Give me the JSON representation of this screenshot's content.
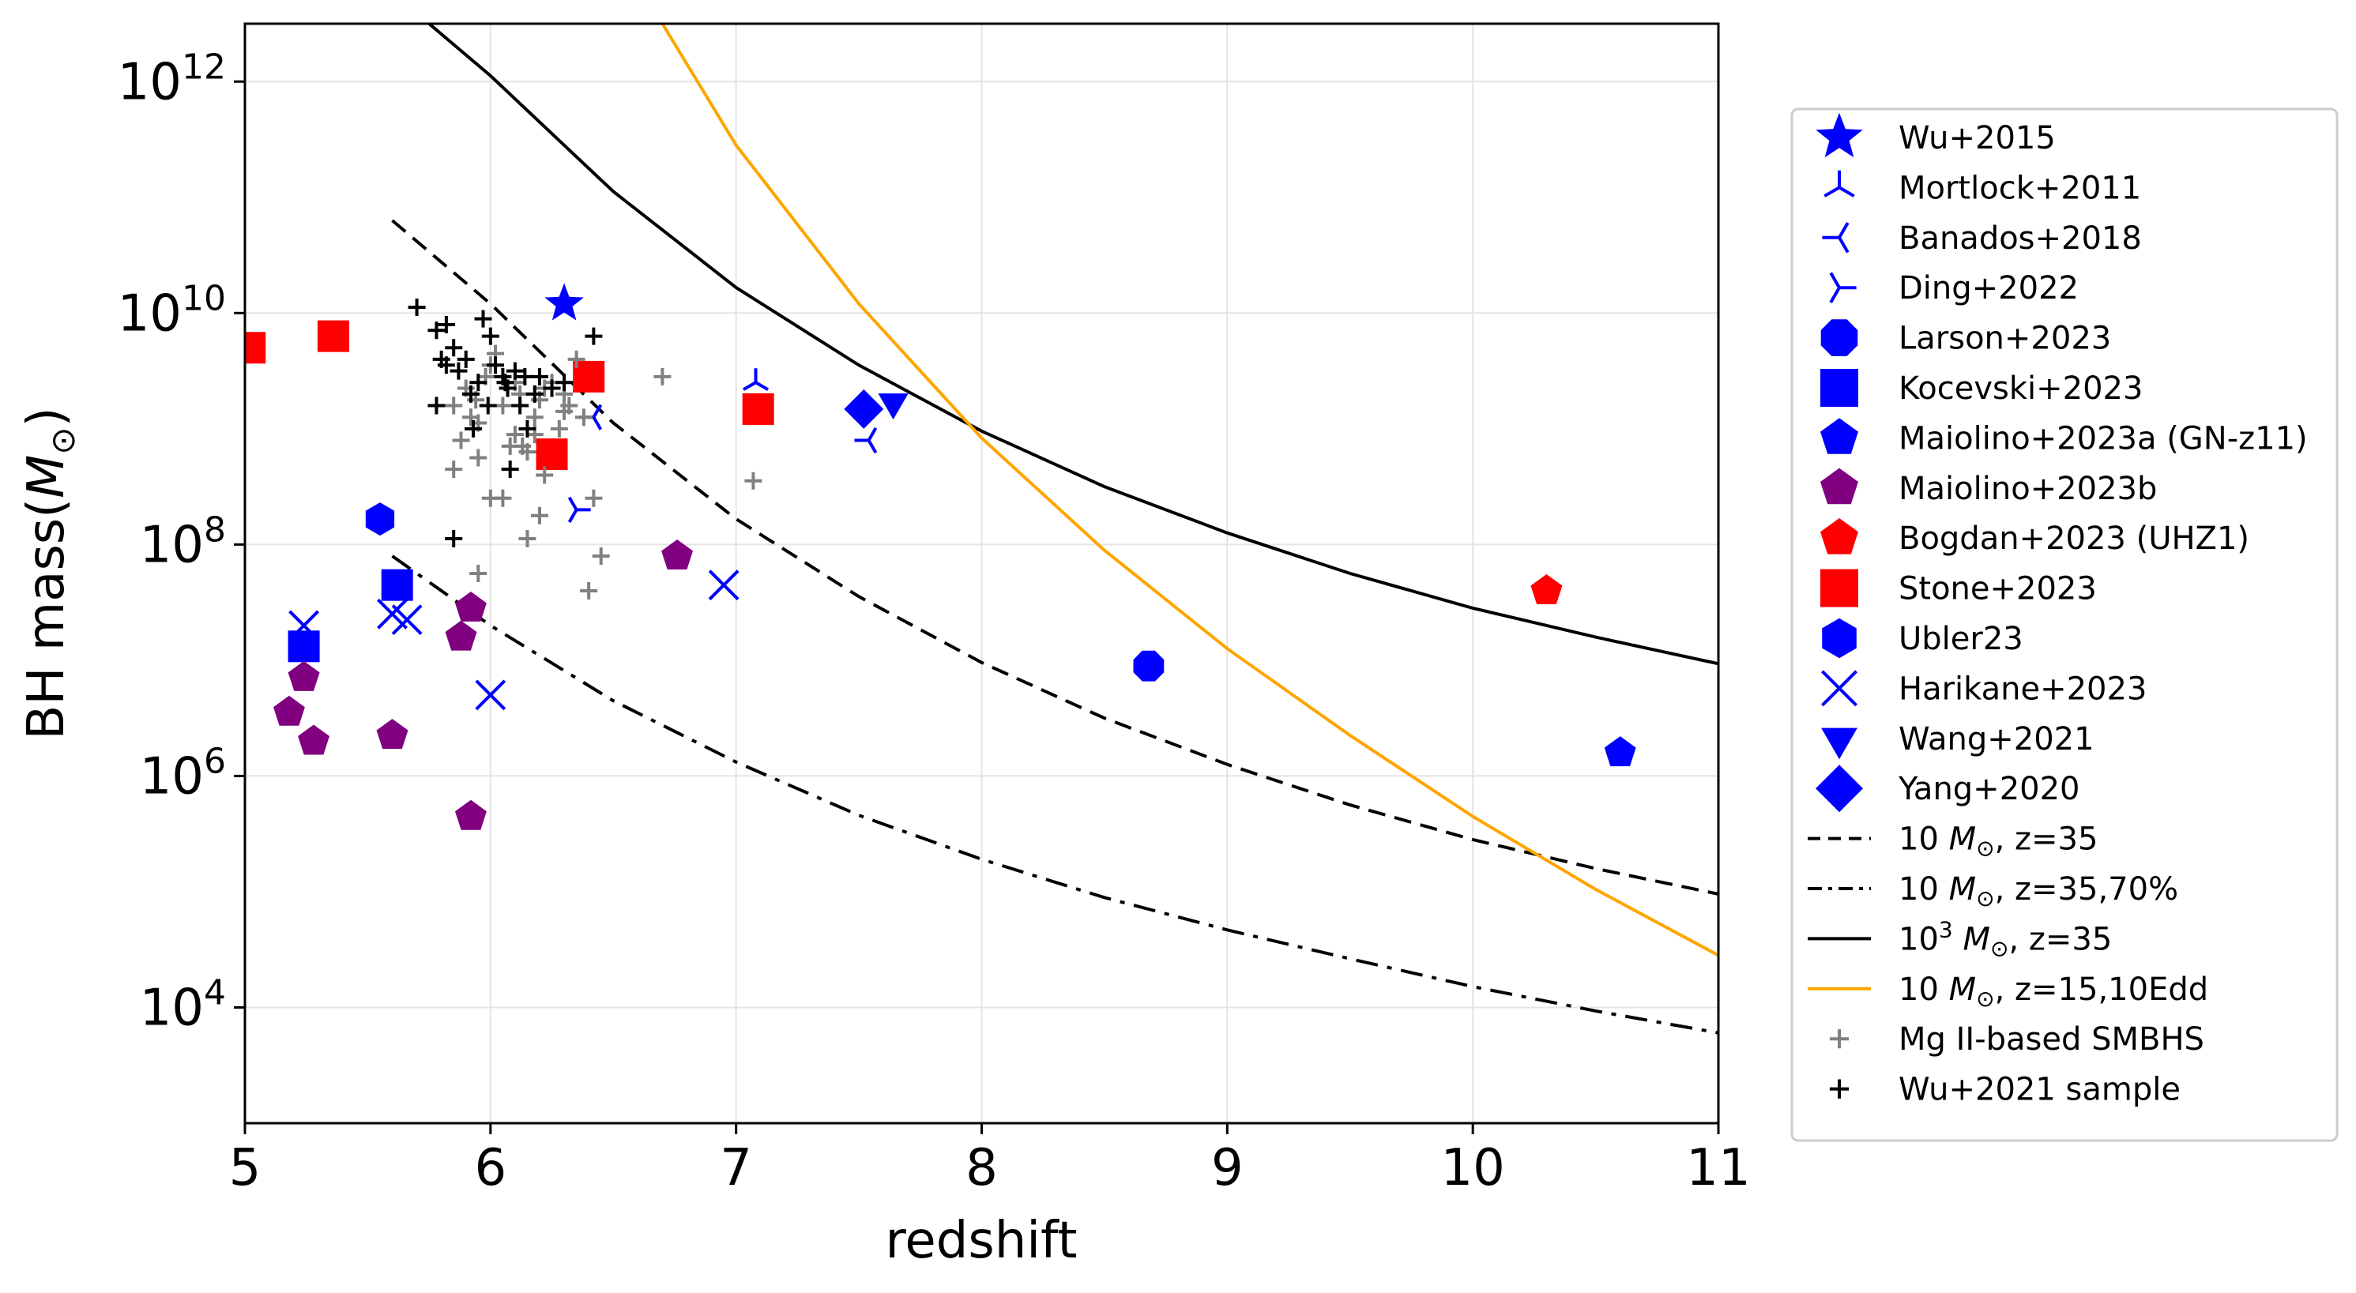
{
  "chart_data": {
    "type": "scatter",
    "xlabel": "redshift",
    "ylabel_text": "BH mass(",
    "ylabel_sym": "M",
    "ylabel_sub": "⊙",
    "ylabel_close": ")",
    "xlim": [
      5,
      11
    ],
    "ylim_log10": [
      3,
      12.5
    ],
    "yscale": "log",
    "grid": true,
    "legend_position": "right",
    "x_ticks": [
      "5",
      "6",
      "7",
      "8",
      "9",
      "10",
      "11"
    ],
    "y_ticks": [
      {
        "base": "10",
        "exp": "4",
        "value": 4
      },
      {
        "base": "10",
        "exp": "6",
        "value": 6
      },
      {
        "base": "10",
        "exp": "8",
        "value": 8
      },
      {
        "base": "10",
        "exp": "10",
        "value": 10
      },
      {
        "base": "10",
        "exp": "12",
        "value": 12
      }
    ],
    "point_series": [
      {
        "name": "Wu+2015",
        "marker": "star",
        "color": "#0000ff",
        "points": [
          [
            6.3,
            10.08
          ]
        ]
      },
      {
        "name": "Mortlock+2011",
        "marker": "tri_up",
        "color": "#0000ff",
        "points": [
          [
            7.08,
            9.4
          ]
        ]
      },
      {
        "name": "Banados+2018",
        "marker": "tri_left",
        "color": "#0000ff",
        "points": [
          [
            7.54,
            8.9
          ],
          [
            6.42,
            9.1
          ]
        ]
      },
      {
        "name": "Ding+2022",
        "marker": "tri_right",
        "color": "#0000ff",
        "points": [
          [
            6.35,
            8.3
          ]
        ]
      },
      {
        "name": "Larson+2023",
        "marker": "octagon",
        "color": "#0000ff",
        "points": [
          [
            8.68,
            6.95
          ]
        ]
      },
      {
        "name": "Kocevski+2023",
        "marker": "square",
        "color": "#0000ff",
        "points": [
          [
            5.24,
            7.12
          ],
          [
            5.62,
            7.65
          ]
        ]
      },
      {
        "name": "Maiolino+2023a (GN-z11)",
        "marker": "pentagon",
        "color": "#0000ff",
        "points": [
          [
            10.6,
            6.2
          ]
        ]
      },
      {
        "name": "Maiolino+2023b",
        "marker": "pentagon",
        "color": "#800080",
        "points": [
          [
            5.18,
            6.55
          ],
          [
            5.24,
            6.85
          ],
          [
            5.28,
            6.3
          ],
          [
            5.6,
            6.35
          ],
          [
            5.88,
            7.2
          ],
          [
            5.92,
            7.45
          ],
          [
            5.92,
            5.65
          ],
          [
            6.76,
            7.9
          ]
        ]
      },
      {
        "name": "Bogdan+2023 (UHZ1)",
        "marker": "pentagon",
        "color": "#ff0000",
        "points": [
          [
            10.3,
            7.6
          ]
        ]
      },
      {
        "name": "Stone+2023",
        "marker": "square",
        "color": "#ff0000",
        "points": [
          [
            5.02,
            9.7
          ],
          [
            5.36,
            9.8
          ],
          [
            6.25,
            8.78
          ],
          [
            6.4,
            9.45
          ],
          [
            7.09,
            9.17
          ]
        ]
      },
      {
        "name": "Ubler23",
        "marker": "hexagon",
        "color": "#0000ff",
        "points": [
          [
            5.55,
            8.22
          ]
        ]
      },
      {
        "name": "Harikane+2023",
        "marker": "x",
        "color": "#0000ff",
        "points": [
          [
            5.24,
            7.3
          ],
          [
            5.6,
            7.4
          ],
          [
            5.66,
            7.35
          ],
          [
            6.0,
            6.7
          ],
          [
            6.95,
            7.65
          ]
        ]
      },
      {
        "name": "Wang+2021",
        "marker": "triangle_down",
        "color": "#0000ff",
        "points": [
          [
            7.64,
            9.23
          ]
        ]
      },
      {
        "name": "Yang+2020",
        "marker": "diamond",
        "color": "#0000ff",
        "points": [
          [
            7.52,
            9.17
          ]
        ]
      },
      {
        "name": "Mg II-based SMBHS",
        "marker": "plus",
        "color": "#808080",
        "points": [
          [
            5.85,
            8.65
          ],
          [
            5.95,
            8.75
          ],
          [
            6.0,
            8.4
          ],
          [
            6.05,
            8.4
          ],
          [
            6.15,
            8.05
          ],
          [
            6.2,
            8.25
          ],
          [
            6.3,
            9.3
          ],
          [
            6.35,
            9.6
          ],
          [
            6.42,
            8.4
          ],
          [
            6.45,
            7.9
          ],
          [
            6.4,
            7.6
          ],
          [
            6.7,
            9.45
          ],
          [
            7.07,
            8.55
          ],
          [
            5.95,
            7.75
          ],
          [
            5.88,
            8.9
          ],
          [
            5.92,
            9.1
          ],
          [
            6.0,
            9.55
          ],
          [
            6.05,
            9.2
          ],
          [
            6.1,
            8.95
          ],
          [
            6.12,
            9.3
          ],
          [
            6.18,
            9.1
          ],
          [
            6.22,
            8.6
          ],
          [
            6.25,
            9.4
          ],
          [
            6.28,
            9.0
          ],
          [
            6.32,
            9.2
          ],
          [
            5.9,
            9.35
          ],
          [
            5.98,
            9.45
          ],
          [
            6.15,
            8.8
          ],
          [
            6.08,
            8.85
          ],
          [
            5.95,
            9.05
          ],
          [
            6.2,
            9.25
          ],
          [
            6.3,
            9.15
          ],
          [
            6.02,
            9.65
          ],
          [
            5.85,
            9.2
          ],
          [
            6.13,
            8.85
          ],
          [
            6.38,
            9.1
          ],
          [
            6.22,
            9.35
          ],
          [
            5.94,
            9.25
          ],
          [
            6.18,
            8.95
          ],
          [
            6.1,
            9.4
          ]
        ]
      },
      {
        "name": "Wu+2021 sample",
        "marker": "plus",
        "color": "#000000",
        "points": [
          [
            5.7,
            10.05
          ],
          [
            5.78,
            9.85
          ],
          [
            5.8,
            9.6
          ],
          [
            5.82,
            9.9
          ],
          [
            5.85,
            9.7
          ],
          [
            5.87,
            9.5
          ],
          [
            5.9,
            9.6
          ],
          [
            5.92,
            9.3
          ],
          [
            5.95,
            9.4
          ],
          [
            5.97,
            9.95
          ],
          [
            6.0,
            9.8
          ],
          [
            6.02,
            9.55
          ],
          [
            6.05,
            9.45
          ],
          [
            6.07,
            9.35
          ],
          [
            6.1,
            9.5
          ],
          [
            6.12,
            9.2
          ],
          [
            6.15,
            9.0
          ],
          [
            6.18,
            9.3
          ],
          [
            6.2,
            9.45
          ],
          [
            6.25,
            9.35
          ],
          [
            6.3,
            9.4
          ],
          [
            6.42,
            9.8
          ],
          [
            5.78,
            9.2
          ],
          [
            5.82,
            9.55
          ],
          [
            6.08,
            8.65
          ],
          [
            5.85,
            8.05
          ],
          [
            5.93,
            9.0
          ],
          [
            5.99,
            9.2
          ],
          [
            6.06,
            9.4
          ],
          [
            6.14,
            9.45
          ]
        ]
      }
    ],
    "line_series": [
      {
        "name": "10 M⊙, z=35",
        "legend_base": "10 ",
        "legend_sym": "M",
        "legend_sub": "⊙",
        "legend_rest": ", z=35",
        "style": "dashed",
        "color": "#000000",
        "x": [
          5.6,
          6.0,
          6.5,
          7.0,
          7.5,
          8.0,
          8.5,
          9.0,
          9.5,
          10.0,
          10.5,
          11.0
        ],
        "y": [
          10.8,
          10.08,
          9.05,
          8.22,
          7.55,
          6.98,
          6.5,
          6.1,
          5.75,
          5.45,
          5.2,
          4.98
        ]
      },
      {
        "name": "10 M⊙, z=35,70%",
        "legend_base": "10 ",
        "legend_sym": "M",
        "legend_sub": "⊙",
        "legend_rest": ", z=35,70%",
        "style": "dashdot",
        "color": "#000000",
        "x": [
          5.6,
          6.0,
          6.5,
          7.0,
          7.5,
          8.0,
          8.5,
          9.0,
          9.5,
          10.0,
          10.5,
          11.0
        ],
        "y": [
          7.9,
          7.3,
          6.65,
          6.12,
          5.66,
          5.28,
          4.95,
          4.67,
          4.42,
          4.18,
          3.97,
          3.78
        ]
      },
      {
        "name": "10^3 M⊙, z=35",
        "legend_base": "10",
        "legend_exp": "3",
        "legend_sym": "M",
        "legend_sub": "⊙",
        "legend_rest": ", z=35",
        "style": "solid",
        "color": "#000000",
        "x": [
          5.75,
          6.0,
          6.5,
          7.0,
          7.5,
          8.0,
          8.5,
          9.0,
          9.5,
          10.0,
          10.5,
          11.0
        ],
        "y": [
          12.5,
          12.05,
          11.05,
          10.22,
          9.55,
          8.98,
          8.5,
          8.1,
          7.75,
          7.45,
          7.2,
          6.97
        ]
      },
      {
        "name": "10 M⊙, z=15,10Edd",
        "legend_base": "10 ",
        "legend_sym": "M",
        "legend_sub": "⊙",
        "legend_rest": ", z=15,10Edd",
        "style": "solid",
        "color": "#ffa500",
        "x": [
          6.7,
          7.0,
          7.5,
          8.0,
          8.5,
          9.0,
          9.5,
          10.0,
          10.5,
          11.0
        ],
        "y": [
          12.5,
          11.45,
          10.08,
          8.92,
          7.95,
          7.1,
          6.35,
          5.65,
          5.02,
          4.45
        ]
      }
    ]
  }
}
